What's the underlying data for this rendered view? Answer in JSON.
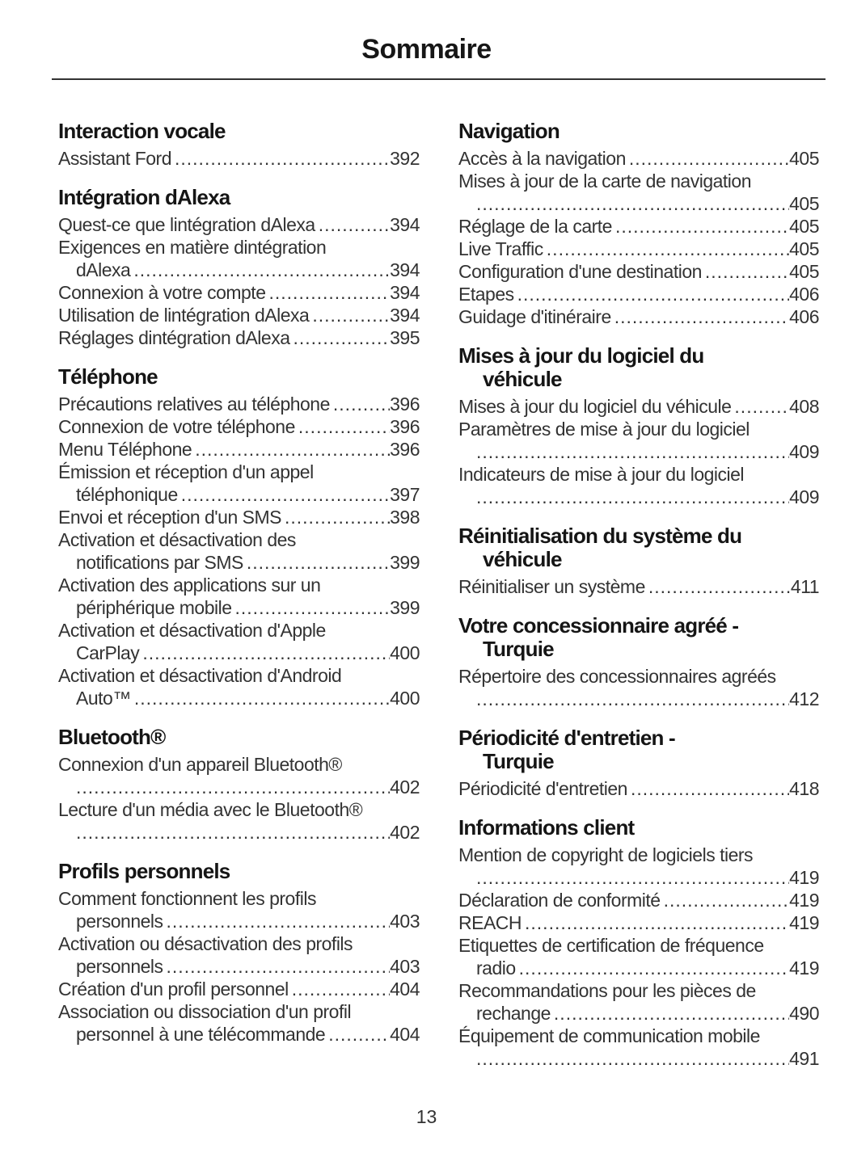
{
  "colors": {
    "background": "#ffffff",
    "heading_text": "#151515",
    "body_text": "#333333",
    "rule": "#333333"
  },
  "page": {
    "title": "Sommaire",
    "footer_page_number": "13"
  },
  "columns": {
    "left": {
      "sections": [
        {
          "heading_lines": [
            "Interaction vocale"
          ],
          "entries": [
            {
              "lines": [
                "Assistant Ford"
              ],
              "page": "392"
            }
          ]
        },
        {
          "heading_lines": [
            "Intégration dAlexa"
          ],
          "entries": [
            {
              "lines": [
                "Quest-ce que lintégration dAlexa"
              ],
              "page": "394"
            },
            {
              "lines": [
                "Exigences en matière dintégration",
                "dAlexa"
              ],
              "page": "394"
            },
            {
              "lines": [
                "Connexion à votre compte"
              ],
              "page": "394"
            },
            {
              "lines": [
                "Utilisation de lintégration dAlexa"
              ],
              "page": "394"
            },
            {
              "lines": [
                "Réglages dintégration dAlexa"
              ],
              "page": "395"
            }
          ]
        },
        {
          "heading_lines": [
            "Téléphone"
          ],
          "entries": [
            {
              "lines": [
                "Précautions relatives au téléphone"
              ],
              "page": "396"
            },
            {
              "lines": [
                "Connexion de votre téléphone"
              ],
              "page": "396"
            },
            {
              "lines": [
                "Menu Téléphone"
              ],
              "page": "396"
            },
            {
              "lines": [
                "Émission et réception d'un appel",
                "téléphonique"
              ],
              "page": "397"
            },
            {
              "lines": [
                "Envoi et réception d'un SMS"
              ],
              "page": "398"
            },
            {
              "lines": [
                "Activation et désactivation des",
                "notifications par SMS"
              ],
              "page": "399"
            },
            {
              "lines": [
                "Activation des applications sur un",
                "périphérique mobile"
              ],
              "page": "399"
            },
            {
              "lines": [
                "Activation et désactivation d'Apple",
                "CarPlay"
              ],
              "page": "400"
            },
            {
              "lines": [
                "Activation et désactivation d'Android",
                "Auto™"
              ],
              "page": "400"
            }
          ]
        },
        {
          "heading_lines": [
            "Bluetooth®"
          ],
          "entries": [
            {
              "lines": [
                "Connexion d'un appareil Bluetooth®",
                ""
              ],
              "page": "402"
            },
            {
              "lines": [
                "Lecture d'un média avec le Bluetooth®",
                ""
              ],
              "page": "402"
            }
          ]
        },
        {
          "heading_lines": [
            "Profils personnels"
          ],
          "entries": [
            {
              "lines": [
                "Comment fonctionnent les profils",
                "personnels"
              ],
              "page": "403"
            },
            {
              "lines": [
                "Activation ou désactivation des profils",
                "personnels"
              ],
              "page": "403"
            },
            {
              "lines": [
                "Création d'un profil personnel"
              ],
              "page": "404"
            },
            {
              "lines": [
                "Association ou dissociation d'un profil",
                "personnel à une télécommande"
              ],
              "page": "404"
            }
          ]
        }
      ]
    },
    "right": {
      "sections": [
        {
          "heading_lines": [
            "Navigation"
          ],
          "entries": [
            {
              "lines": [
                "Accès à la navigation"
              ],
              "page": "405"
            },
            {
              "lines": [
                "Mises à jour de la carte de navigation",
                ""
              ],
              "page": "405"
            },
            {
              "lines": [
                "Réglage de la carte"
              ],
              "page": "405"
            },
            {
              "lines": [
                "Live Traffic"
              ],
              "page": "405"
            },
            {
              "lines": [
                "Configuration d'une destination"
              ],
              "page": "405"
            },
            {
              "lines": [
                "Etapes"
              ],
              "page": "406"
            },
            {
              "lines": [
                "Guidage d'itinéraire"
              ],
              "page": "406"
            }
          ]
        },
        {
          "heading_lines": [
            "Mises à jour du logiciel du",
            "véhicule"
          ],
          "entries": [
            {
              "lines": [
                "Mises à jour du logiciel du véhicule"
              ],
              "page": "408"
            },
            {
              "lines": [
                "Paramètres de mise à jour du logiciel",
                ""
              ],
              "page": "409"
            },
            {
              "lines": [
                "Indicateurs de mise à jour du logiciel",
                ""
              ],
              "page": "409"
            }
          ]
        },
        {
          "heading_lines": [
            "Réinitialisation du système du",
            "véhicule"
          ],
          "entries": [
            {
              "lines": [
                "Réinitialiser un système"
              ],
              "page": "411"
            }
          ]
        },
        {
          "heading_lines": [
            "Votre concessionnaire agréé -",
            "Turquie"
          ],
          "entries": [
            {
              "lines": [
                "Répertoire des concessionnaires agréés",
                ""
              ],
              "page": "412"
            }
          ]
        },
        {
          "heading_lines": [
            "Périodicité d'entretien -",
            "Turquie"
          ],
          "entries": [
            {
              "lines": [
                "Périodicité d'entretien"
              ],
              "page": "418"
            }
          ]
        },
        {
          "heading_lines": [
            "Informations client"
          ],
          "entries": [
            {
              "lines": [
                "Mention de copyright de logiciels tiers",
                ""
              ],
              "page": "419"
            },
            {
              "lines": [
                "Déclaration de conformité"
              ],
              "page": "419"
            },
            {
              "lines": [
                "REACH"
              ],
              "page": "419"
            },
            {
              "lines": [
                "Etiquettes de certification de fréquence",
                "radio"
              ],
              "page": "419"
            },
            {
              "lines": [
                "Recommandations pour les pièces de",
                "rechange"
              ],
              "page": "490"
            },
            {
              "lines": [
                "Équipement de communication mobile",
                ""
              ],
              "page": "491"
            }
          ]
        }
      ]
    }
  }
}
